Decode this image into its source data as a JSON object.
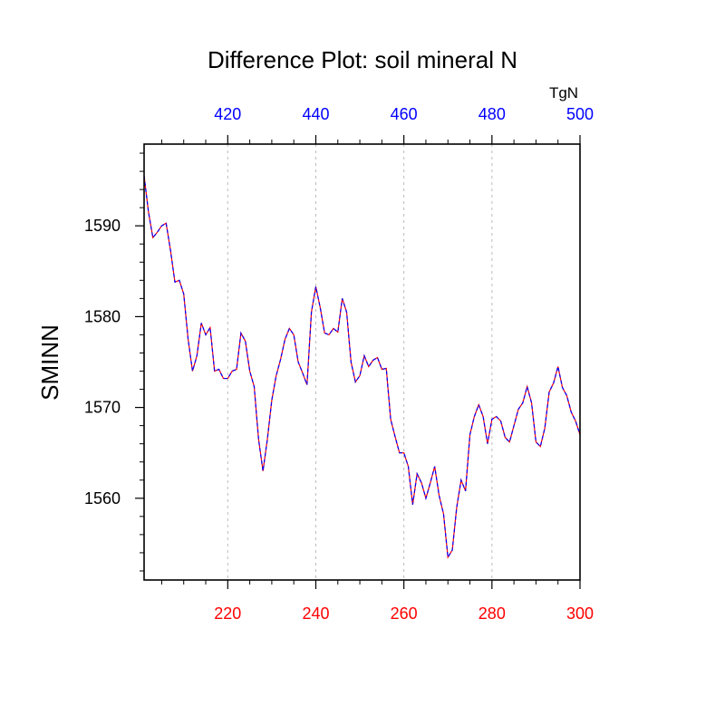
{
  "chart_data": {
    "type": "line",
    "title": "Difference Plot: soil mineral N",
    "ylabel": "SMINN",
    "xlabel": "",
    "top_axis_unit": "TgN",
    "xlim": [
      201,
      300
    ],
    "ylim": [
      1551,
      1599
    ],
    "x_ticks": [
      220,
      240,
      260,
      280,
      300
    ],
    "x_tick_labels": [
      "220",
      "240",
      "260",
      "280",
      "300"
    ],
    "top_ticks": [
      420,
      440,
      460,
      480,
      500
    ],
    "top_tick_labels": [
      "420",
      "440",
      "460",
      "480",
      "500"
    ],
    "top_axis_offset": 200,
    "y_ticks": [
      1560,
      1570,
      1580,
      1590
    ],
    "y_tick_labels": [
      "1560",
      "1570",
      "1580",
      "1590"
    ],
    "grid": "vertical dashed at major x ticks",
    "colors": {
      "bottom_tick_labels": "#ff0000",
      "top_tick_labels": "#0000ff",
      "series_a": "#ff0000",
      "series_b": "#0000ff",
      "frame": "#000000",
      "grid": "#bbbbbb"
    },
    "series": [
      {
        "x": [
          201,
          202,
          203,
          204,
          205,
          206,
          207,
          208,
          209,
          210,
          211,
          212,
          213,
          214,
          215,
          216,
          217,
          218,
          219,
          220,
          221,
          222,
          223,
          224,
          225,
          226,
          227,
          228,
          229,
          230,
          231,
          232,
          233,
          234,
          235,
          236,
          237,
          238,
          239,
          240,
          241,
          242,
          243,
          244,
          245,
          246,
          247,
          248,
          249,
          250,
          251,
          252,
          253,
          254,
          255,
          256,
          257,
          258,
          259,
          260,
          261,
          262,
          263,
          264,
          265,
          266,
          267,
          268,
          269,
          270,
          271,
          272,
          273,
          274,
          275,
          276,
          277,
          278,
          279,
          280,
          281,
          282,
          283,
          284,
          285,
          286,
          287,
          288,
          289,
          290,
          291,
          292,
          293,
          294,
          295,
          296,
          297,
          298,
          299,
          300
        ],
        "values": [
          1595.5,
          1591.5,
          1588.7,
          1589.3,
          1590.0,
          1590.3,
          1587.3,
          1583.8,
          1584.0,
          1582.5,
          1577.5,
          1574.0,
          1575.7,
          1579.3,
          1578.0,
          1578.8,
          1574.0,
          1574.2,
          1573.2,
          1573.2,
          1574.0,
          1574.2,
          1578.2,
          1577.3,
          1574.0,
          1572.3,
          1566.5,
          1563.0,
          1566.5,
          1570.8,
          1573.5,
          1575.3,
          1577.5,
          1578.7,
          1578.0,
          1575.0,
          1573.8,
          1572.5,
          1580.5,
          1583.3,
          1581.0,
          1578.2,
          1578.0,
          1578.7,
          1578.3,
          1582.0,
          1580.5,
          1575.0,
          1572.8,
          1573.5,
          1575.7,
          1574.5,
          1575.2,
          1575.5,
          1574.2,
          1574.3,
          1568.7,
          1566.8,
          1565.0,
          1565.0,
          1563.5,
          1559.3,
          1562.7,
          1561.7,
          1560.0,
          1561.7,
          1563.5,
          1560.3,
          1558.3,
          1553.5,
          1554.3,
          1559.0,
          1562.0,
          1560.8,
          1567.0,
          1569.0,
          1570.3,
          1569.0,
          1566.0,
          1568.7,
          1569.0,
          1568.5,
          1566.7,
          1566.2,
          1568.0,
          1569.8,
          1570.5,
          1572.3,
          1570.5,
          1566.2,
          1565.7,
          1567.7,
          1571.7,
          1572.7,
          1574.5,
          1572.2,
          1571.3,
          1569.5,
          1568.5,
          1567.0
        ]
      }
    ]
  }
}
